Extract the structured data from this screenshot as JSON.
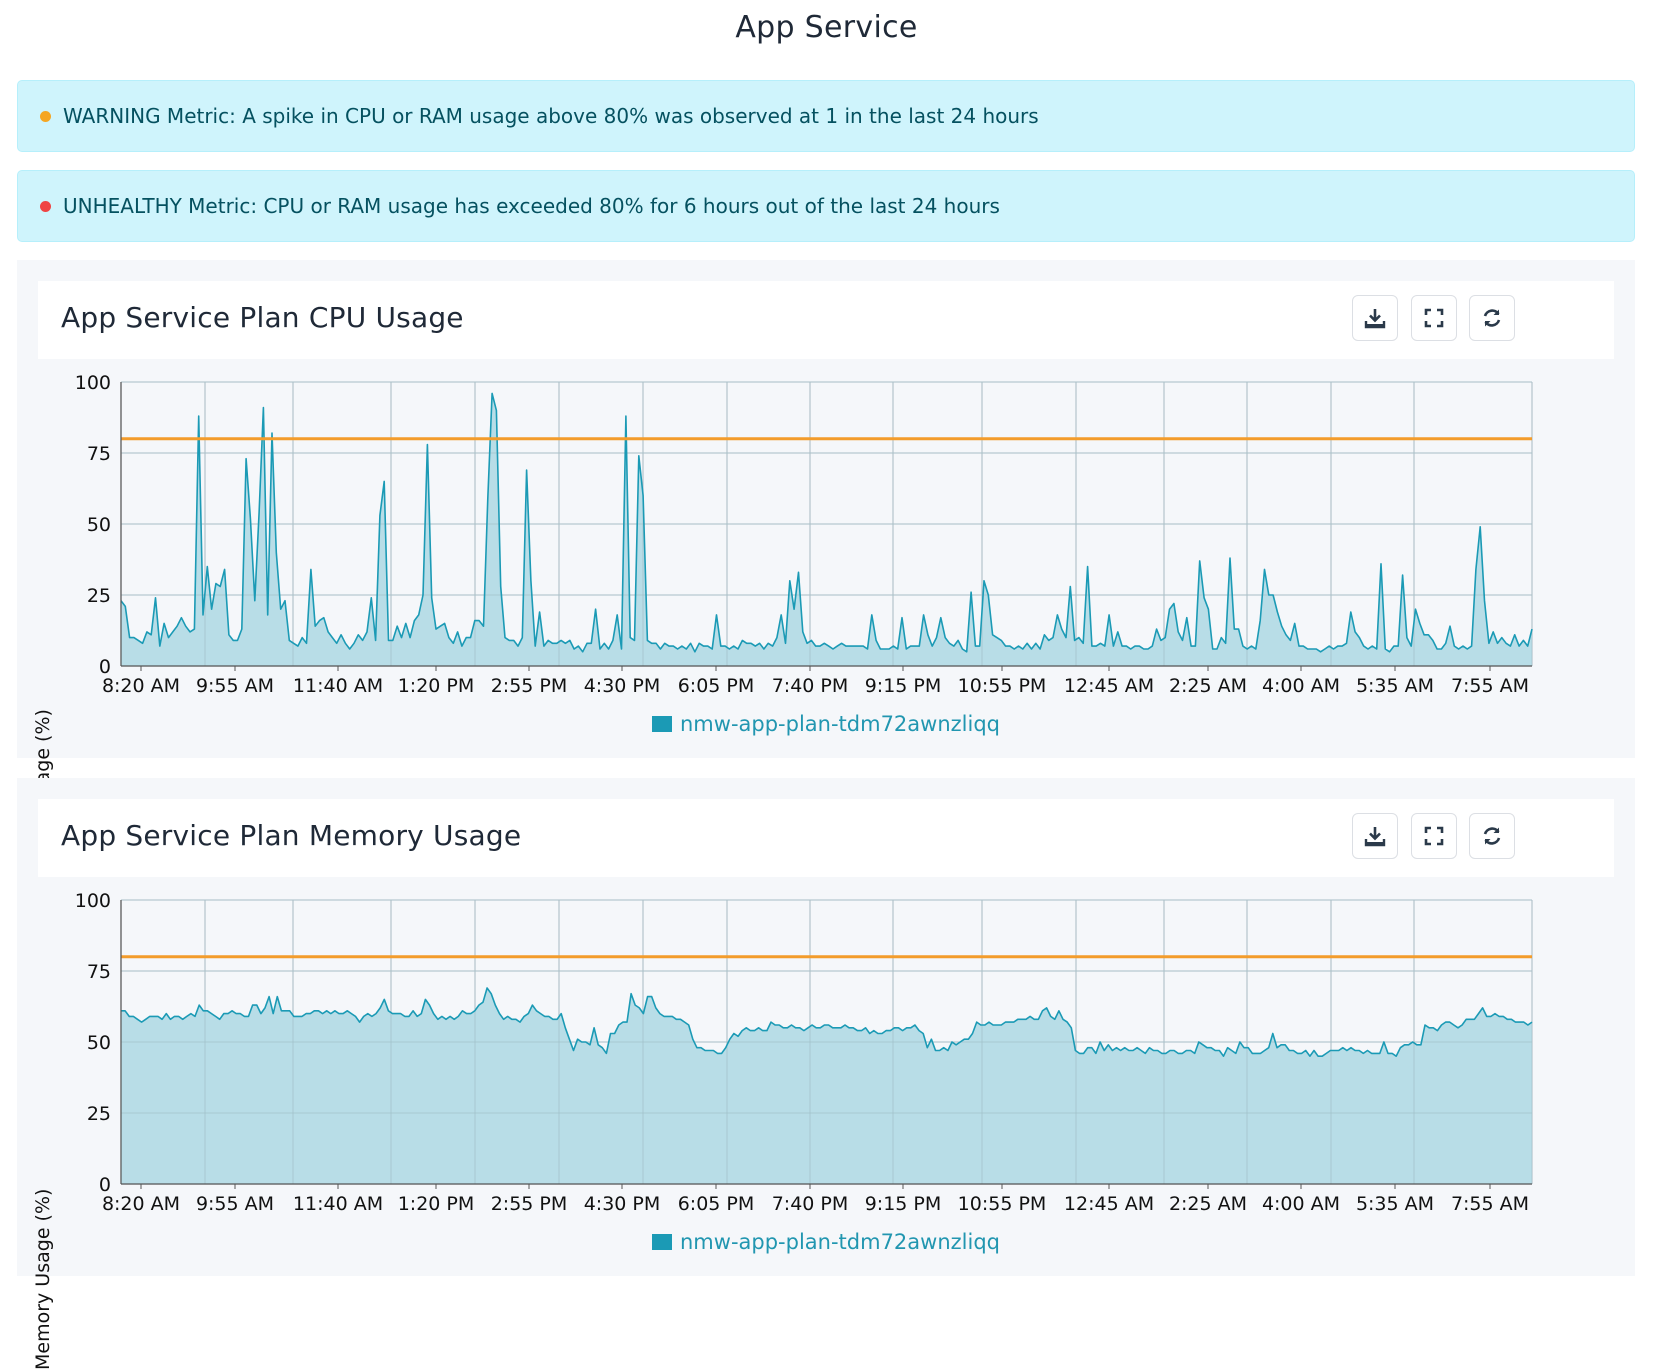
{
  "page": {
    "title": "App Service"
  },
  "alerts": [
    {
      "level": "warning",
      "color": "#f5a623",
      "text": "WARNING Metric: A spike in CPU or RAM usage above 80% was observed at 1 in the last 24 hours"
    },
    {
      "level": "unhealthy",
      "color": "#ef4444",
      "text": "UNHEALTHY Metric: CPU or RAM usage has exceeded 80% for 6 hours out of the last 24 hours"
    }
  ],
  "toolbar": {
    "icons": [
      "download-icon",
      "fullscreen-icon",
      "refresh-icon"
    ]
  },
  "colors": {
    "series": "#1b9ab5",
    "area": "#b4dbe6",
    "threshold": "#f39c2b",
    "grid": "#cfd3d9"
  },
  "chart_data": [
    {
      "type": "area",
      "title": "App Service Plan CPU Usage",
      "ylabel": "CPU usage (%)",
      "ylim": [
        0,
        100
      ],
      "yticks": [
        0,
        25,
        50,
        75,
        100
      ],
      "threshold": 80,
      "grid": true,
      "legend_position": "bottom-center",
      "x_tick_labels": [
        "8:20 AM",
        "9:55 AM",
        "11:40 AM",
        "1:20 PM",
        "2:55 PM",
        "4:30 PM",
        "6:05 PM",
        "7:40 PM",
        "9:15 PM",
        "10:55 PM",
        "12:45 AM",
        "2:25 AM",
        "4:00 AM",
        "5:35 AM",
        "7:55 AM"
      ],
      "series": [
        {
          "name": "nmw-app-plan-tdm72awnzliqq",
          "x_start": "8:20 AM",
          "interval_minutes": 5,
          "values": [
            23,
            21,
            10,
            10,
            9,
            8,
            12,
            11,
            24,
            7,
            15,
            10,
            12,
            14,
            17,
            14,
            12,
            13,
            88,
            18,
            35,
            20,
            29,
            28,
            34,
            11,
            9,
            9,
            13,
            73,
            52,
            23,
            54,
            91,
            18,
            82,
            40,
            20,
            23,
            9,
            8,
            7,
            10,
            8,
            34,
            14,
            16,
            17,
            12,
            10,
            8,
            11,
            8,
            6,
            8,
            11,
            9,
            12,
            24,
            9,
            53,
            65,
            9,
            9,
            14,
            10,
            15,
            10,
            16,
            18,
            25,
            78,
            24,
            13,
            14,
            15,
            10,
            8,
            12,
            7,
            10,
            10,
            16,
            16,
            14,
            59,
            96,
            90,
            28,
            10,
            9,
            9,
            7,
            10,
            69,
            30,
            7,
            19,
            7,
            9,
            8,
            8,
            9,
            8,
            9,
            6,
            7,
            5,
            8,
            8,
            20,
            6,
            8,
            6,
            9,
            18,
            6,
            88,
            10,
            9,
            74,
            60,
            9,
            8,
            8,
            6,
            8,
            7,
            7,
            6,
            7,
            6,
            8,
            5,
            8,
            7,
            7,
            6,
            18,
            7,
            7,
            6,
            7,
            6,
            9,
            8,
            8,
            7,
            8,
            6,
            8,
            7,
            10,
            18,
            8,
            30,
            20,
            33,
            12,
            8,
            9,
            7,
            7,
            8,
            7,
            6,
            7,
            8,
            7,
            7,
            7,
            7,
            7,
            6,
            18,
            9,
            6,
            6,
            6,
            7,
            6,
            17,
            6,
            7,
            7,
            7,
            18,
            11,
            7,
            10,
            17,
            10,
            8,
            7,
            9,
            6,
            5,
            26,
            7,
            7,
            30,
            25,
            11,
            10,
            9,
            7,
            7,
            6,
            7,
            6,
            8,
            6,
            8,
            6,
            11,
            9,
            10,
            18,
            13,
            10,
            28,
            9,
            10,
            8,
            35,
            7,
            7,
            8,
            7,
            18,
            7,
            12,
            7,
            7,
            6,
            7,
            7,
            6,
            6,
            7,
            13,
            9,
            10,
            20,
            22,
            12,
            9,
            17,
            7,
            7,
            37,
            24,
            20,
            6,
            6,
            10,
            8,
            38,
            13,
            13,
            7,
            6,
            7,
            6,
            16,
            34,
            25,
            25,
            19,
            14,
            11,
            9,
            15,
            7,
            7,
            6,
            6,
            6,
            5,
            6,
            7,
            6,
            7,
            7,
            8,
            19,
            12,
            10,
            7,
            6,
            7,
            6,
            36,
            6,
            5,
            7,
            7,
            32,
            10,
            7,
            20,
            15,
            11,
            11,
            9,
            6,
            6,
            8,
            14,
            7,
            6,
            7,
            6,
            7,
            34,
            49,
            23,
            8,
            12,
            8,
            10,
            8,
            7,
            11,
            7,
            9,
            7,
            13
          ]
        }
      ]
    },
    {
      "type": "area",
      "title": "App Service Plan Memory Usage",
      "ylabel": "Memory Usage (%)",
      "ylim": [
        0,
        100
      ],
      "yticks": [
        0,
        25,
        50,
        75,
        100
      ],
      "threshold": 80,
      "grid": true,
      "legend_position": "bottom-center",
      "x_tick_labels": [
        "8:20 AM",
        "9:55 AM",
        "11:40 AM",
        "1:20 PM",
        "2:55 PM",
        "4:30 PM",
        "6:05 PM",
        "7:40 PM",
        "9:15 PM",
        "10:55 PM",
        "12:45 AM",
        "2:25 AM",
        "4:00 AM",
        "5:35 AM",
        "7:55 AM"
      ],
      "series": [
        {
          "name": "nmw-app-plan-tdm72awnzliqq",
          "x_start": "8:20 AM",
          "interval_minutes": 5,
          "values": [
            61,
            61,
            59,
            59,
            58,
            57,
            58,
            59,
            59,
            59,
            58,
            60,
            58,
            59,
            59,
            58,
            59,
            60,
            59,
            63,
            61,
            61,
            60,
            59,
            58,
            60,
            60,
            61,
            60,
            60,
            59,
            59,
            63,
            63,
            60,
            62,
            66,
            60,
            66,
            61,
            61,
            61,
            59,
            59,
            59,
            60,
            60,
            61,
            61,
            60,
            61,
            60,
            61,
            60,
            60,
            61,
            60,
            59,
            57,
            59,
            60,
            59,
            60,
            62,
            65,
            61,
            60,
            60,
            60,
            59,
            59,
            61,
            59,
            60,
            65,
            63,
            60,
            58,
            59,
            58,
            59,
            58,
            59,
            61,
            60,
            60,
            61,
            63,
            64,
            69,
            67,
            63,
            60,
            58,
            59,
            58,
            58,
            57,
            59,
            60,
            63,
            61,
            60,
            59,
            59,
            58,
            58,
            60,
            55,
            51,
            47,
            51,
            50,
            50,
            49,
            55,
            49,
            48,
            46,
            53,
            53,
            56,
            57,
            57,
            67,
            63,
            62,
            60,
            66,
            66,
            62,
            60,
            59,
            59,
            59,
            58,
            58,
            57,
            56,
            51,
            48,
            48,
            47,
            47,
            47,
            46,
            46,
            48,
            51,
            53,
            52,
            54,
            55,
            54,
            54,
            55,
            54,
            54,
            57,
            56,
            56,
            55,
            55,
            56,
            55,
            55,
            54,
            55,
            56,
            55,
            55,
            56,
            56,
            55,
            55,
            55,
            56,
            55,
            55,
            54,
            54,
            55,
            53,
            54,
            53,
            53,
            54,
            54,
            55,
            55,
            54,
            55,
            55,
            56,
            54,
            53,
            48,
            51,
            47,
            47,
            48,
            47,
            50,
            49,
            50,
            51,
            51,
            53,
            57,
            56,
            56,
            57,
            56,
            56,
            56,
            57,
            57,
            57,
            58,
            58,
            58,
            59,
            58,
            58,
            61,
            62,
            59,
            58,
            61,
            58,
            57,
            55,
            47,
            46,
            46,
            48,
            48,
            46,
            50,
            47,
            49,
            47,
            48,
            47,
            48,
            47,
            47,
            48,
            47,
            46,
            48,
            47,
            47,
            46,
            46,
            47,
            47,
            46,
            46,
            47,
            47,
            46,
            50,
            49,
            48,
            48,
            47,
            47,
            45,
            48,
            47,
            46,
            50,
            48,
            48,
            46,
            46,
            46,
            47,
            48,
            53,
            48,
            49,
            49,
            47,
            47,
            46,
            46,
            47,
            45,
            47,
            45,
            45,
            46,
            47,
            47,
            47,
            48,
            47,
            48,
            47,
            47,
            46,
            47,
            46,
            46,
            46,
            50,
            46,
            46,
            45,
            48,
            49,
            49,
            50,
            49,
            49,
            56,
            55,
            55,
            54,
            56,
            57,
            57,
            56,
            55,
            56,
            58,
            58,
            58,
            60,
            62,
            59,
            59,
            60,
            59,
            59,
            58,
            58,
            57,
            57,
            57,
            56,
            57
          ]
        }
      ]
    }
  ]
}
